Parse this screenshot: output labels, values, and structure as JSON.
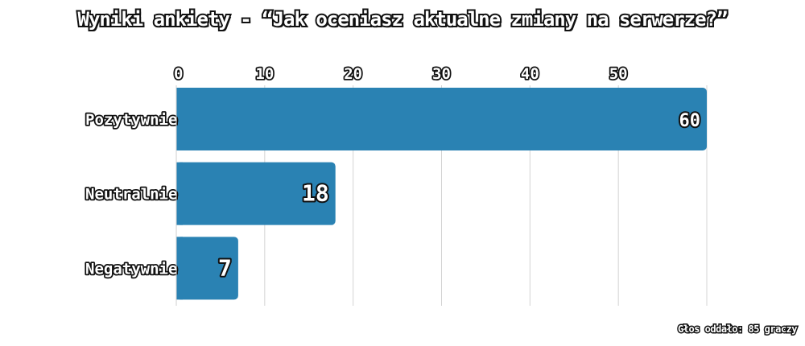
{
  "chart_data": {
    "type": "bar",
    "orientation": "horizontal",
    "title": "Wyniki ankiety - “Jak oceniasz aktualne zmiany na serwerze?”",
    "categories": [
      "Pozytywnie",
      "Neutralnie",
      "Negatywnie"
    ],
    "values": [
      60,
      18,
      7
    ],
    "xlim": [
      0,
      60
    ],
    "x_ticks": [
      0,
      10,
      20,
      30,
      40,
      50
    ],
    "grid": true,
    "colors": {
      "bar": "#2a82b3",
      "grid": "#d4d4d4",
      "text_fill": "#ffffff",
      "text_outline": "#111111"
    }
  },
  "footer": {
    "note": "Głos oddało: 85 graczy"
  }
}
